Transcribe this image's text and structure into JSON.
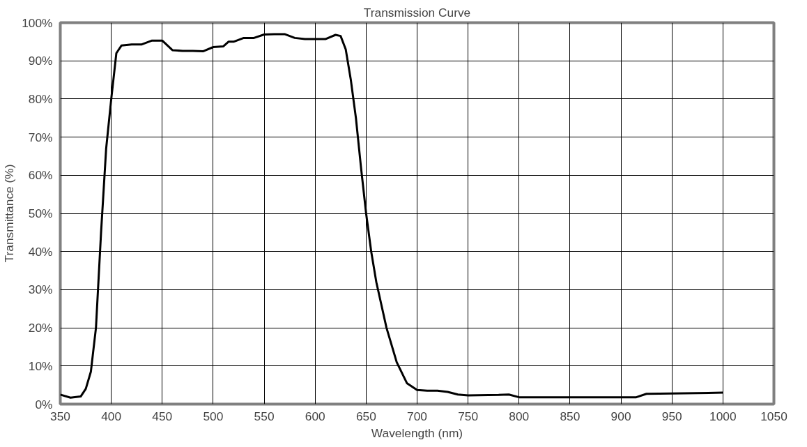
{
  "chart_data": {
    "type": "line",
    "title": "Transmission Curve",
    "xlabel": "Wavelength (nm)",
    "ylabel": "Transmittance (%)",
    "x": [
      350,
      360,
      370,
      375,
      380,
      385,
      390,
      395,
      400,
      405,
      410,
      420,
      430,
      440,
      450,
      460,
      470,
      480,
      490,
      500,
      510,
      515,
      520,
      530,
      540,
      550,
      560,
      570,
      580,
      590,
      600,
      610,
      620,
      625,
      630,
      635,
      640,
      645,
      650,
      655,
      660,
      670,
      680,
      690,
      700,
      710,
      720,
      730,
      740,
      750,
      780,
      790,
      800,
      850,
      900,
      915,
      925,
      950,
      1000
    ],
    "series": [
      {
        "color": "#000000",
        "values": [
          2.5,
          1.7,
          2,
          4,
          8.5,
          20,
          45,
          67,
          80,
          92,
          94,
          94.3,
          94.3,
          95.3,
          95.3,
          92.8,
          92.6,
          92.6,
          92.5,
          93.6,
          93.8,
          95,
          95,
          96,
          96,
          96.9,
          97,
          97,
          96,
          95.7,
          95.7,
          95.7,
          96.8,
          96.5,
          93,
          85,
          75,
          62,
          50,
          40,
          32,
          20,
          11,
          5.5,
          3.7,
          3.5,
          3.5,
          3.2,
          2.5,
          2.3,
          2.4,
          2.5,
          1.8,
          1.8,
          1.8,
          1.8,
          2.7,
          2.8,
          3
        ]
      }
    ],
    "xlim": [
      350,
      1050
    ],
    "xticks": [
      350,
      400,
      450,
      500,
      550,
      600,
      650,
      700,
      750,
      800,
      850,
      900,
      950,
      1000,
      1050
    ],
    "ylim": [
      0,
      100
    ],
    "yticks": [
      {
        "value": 0,
        "label": "0%"
      },
      {
        "value": 10,
        "label": "10%"
      },
      {
        "value": 20,
        "label": "20%"
      },
      {
        "value": 30,
        "label": "30%"
      },
      {
        "value": 40,
        "label": "40%"
      },
      {
        "value": 50,
        "label": "50%"
      },
      {
        "value": 60,
        "label": "60%"
      },
      {
        "value": 70,
        "label": "70%"
      },
      {
        "value": 80,
        "label": "80%"
      },
      {
        "value": 90,
        "label": "90%"
      },
      {
        "value": 100,
        "label": "100%"
      }
    ],
    "grid": true,
    "marker": "none",
    "line_style": "solid"
  }
}
